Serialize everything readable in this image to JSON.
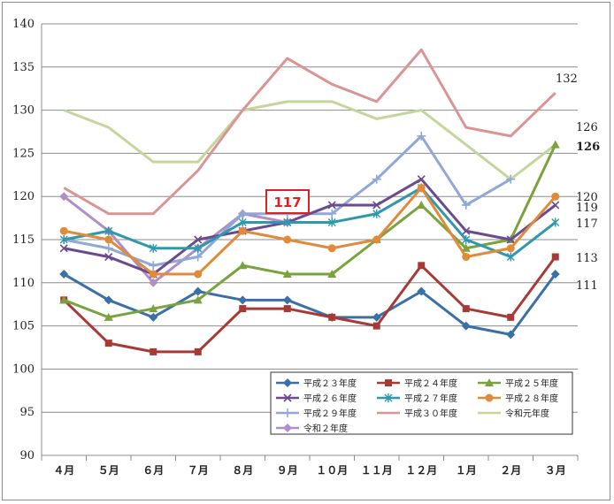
{
  "chart_data": {
    "type": "line",
    "categories": [
      "４月",
      "５月",
      "６月",
      "７月",
      "８月",
      "９月",
      "１０月",
      "１１月",
      "１２月",
      "１月",
      "２月",
      "３月"
    ],
    "ylim": [
      90,
      140
    ],
    "yticks": [
      90,
      95,
      100,
      105,
      110,
      115,
      120,
      125,
      130,
      135,
      140
    ],
    "grid": "horizontal",
    "legend_position": "bottom-right",
    "series": [
      {
        "name": "平成２３年度",
        "color": "#3a6fa8",
        "marker": "diamond",
        "values": [
          111,
          108,
          106,
          109,
          108,
          108,
          106,
          106,
          109,
          105,
          104,
          111
        ]
      },
      {
        "name": "平成２４年度",
        "color": "#a83a36",
        "marker": "square",
        "values": [
          108,
          103,
          102,
          102,
          107,
          107,
          106,
          105,
          112,
          107,
          106,
          113
        ]
      },
      {
        "name": "平成２５年度",
        "color": "#7aa33d",
        "marker": "triangle",
        "values": [
          108,
          106,
          107,
          108,
          112,
          111,
          111,
          115,
          119,
          114,
          115,
          126
        ]
      },
      {
        "name": "平成２６年度",
        "color": "#6b4a8e",
        "marker": "x",
        "values": [
          114,
          113,
          111,
          115,
          116,
          117,
          119,
          119,
          122,
          116,
          115,
          119
        ]
      },
      {
        "name": "平成２７年度",
        "color": "#2e98ad",
        "marker": "asterisk",
        "values": [
          115,
          116,
          114,
          114,
          117,
          117,
          117,
          118,
          121,
          115,
          113,
          117
        ]
      },
      {
        "name": "平成２８年度",
        "color": "#e08a3a",
        "marker": "circle",
        "values": [
          116,
          115,
          111,
          111,
          116,
          115,
          114,
          115,
          121,
          113,
          114,
          120
        ]
      },
      {
        "name": "平成２９年度",
        "color": "#8fa8d8",
        "marker": "plus",
        "values": [
          115,
          114,
          112,
          113,
          118,
          118,
          118,
          122,
          127,
          119,
          122,
          null
        ]
      },
      {
        "name": "平成３０年度",
        "color": "#d99594",
        "marker": "none",
        "values": [
          121,
          118,
          118,
          123,
          130,
          136,
          133,
          131,
          137,
          128,
          127,
          132
        ]
      },
      {
        "name": "令和元年度",
        "color": "#c3d69b",
        "marker": "none",
        "values": [
          130,
          128,
          124,
          124,
          130,
          131,
          131,
          129,
          130,
          126,
          122,
          126
        ]
      },
      {
        "name": "令和２年度",
        "color": "#b08fc7",
        "marker": "diamond",
        "values": [
          120,
          116,
          110,
          114,
          118,
          117,
          null,
          null,
          null,
          null,
          null,
          null
        ]
      }
    ],
    "end_labels": [
      "132",
      "126",
      "126",
      "120",
      "119",
      "117",
      "113",
      "111"
    ],
    "callout": "117"
  }
}
